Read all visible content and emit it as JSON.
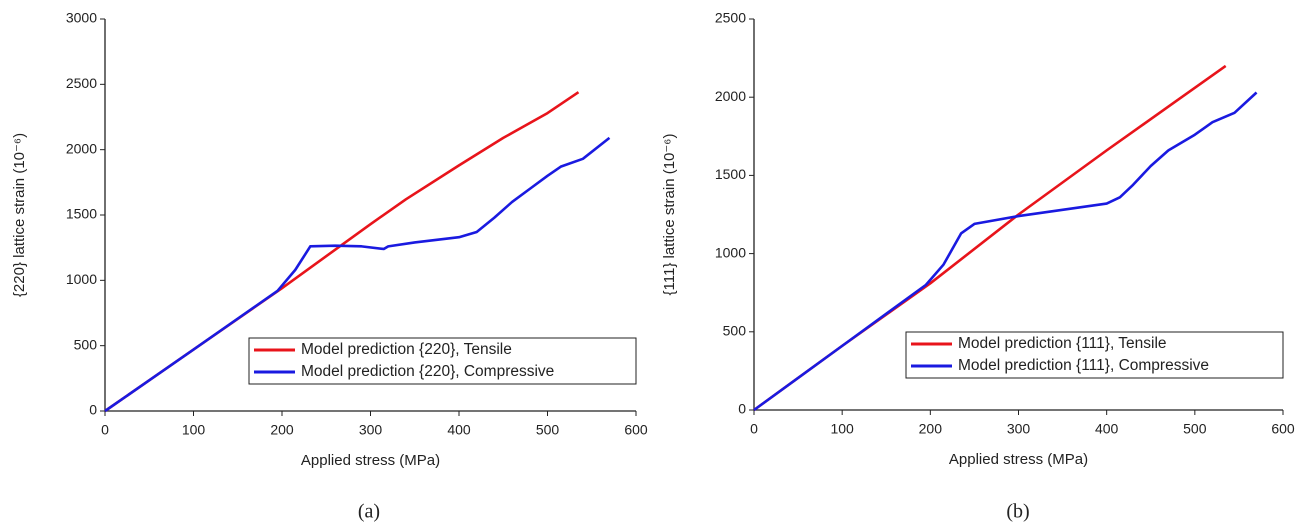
{
  "chart_data": [
    {
      "type": "line",
      "xlabel": "Applied stress (MPa)",
      "ylabel": "{220} lattice strain (10⁻⁶)",
      "caption": "(a)",
      "xlim": [
        0,
        600
      ],
      "xticks": [
        0,
        100,
        200,
        300,
        400,
        500,
        600
      ],
      "ylim": [
        0,
        3000
      ],
      "yticks": [
        0,
        500,
        1000,
        1500,
        2000,
        2500,
        3000
      ],
      "legend": "lower right",
      "series": [
        {
          "name": "Model prediction {220}, Tensile",
          "color": "#e8141b",
          "x": [
            0,
            100,
            200,
            300,
            340,
            400,
            450,
            500,
            535
          ],
          "values": [
            0,
            470,
            940,
            1430,
            1620,
            1880,
            2090,
            2280,
            2440
          ]
        },
        {
          "name": "Model prediction {220}, Compressive",
          "color": "#1a1ae0",
          "x": [
            0,
            100,
            195,
            215,
            232,
            260,
            290,
            315,
            320,
            350,
            400,
            420,
            440,
            460,
            480,
            500,
            515,
            540,
            570
          ],
          "values": [
            0,
            470,
            920,
            1080,
            1260,
            1265,
            1260,
            1240,
            1260,
            1290,
            1330,
            1370,
            1480,
            1600,
            1700,
            1800,
            1870,
            1930,
            2090
          ]
        }
      ]
    },
    {
      "type": "line",
      "xlabel": "Applied stress (MPa)",
      "ylabel": "{111} lattice strain (10⁻⁶)",
      "caption": "(b)",
      "xlim": [
        0,
        600
      ],
      "xticks": [
        0,
        100,
        200,
        300,
        400,
        500,
        600
      ],
      "ylim": [
        0,
        2500
      ],
      "yticks": [
        0,
        500,
        1000,
        1500,
        2000,
        2500
      ],
      "legend": "lower right",
      "series": [
        {
          "name": "Model prediction {111}, Tensile",
          "color": "#e8141b",
          "x": [
            0,
            100,
            200,
            300,
            400,
            480,
            535
          ],
          "values": [
            0,
            410,
            810,
            1250,
            1660,
            1980,
            2200
          ]
        },
        {
          "name": "Model prediction {111}, Compressive",
          "color": "#1a1ae0",
          "x": [
            0,
            100,
            195,
            215,
            235,
            250,
            300,
            350,
            400,
            415,
            430,
            450,
            470,
            500,
            520,
            545,
            570
          ],
          "values": [
            0,
            410,
            800,
            930,
            1130,
            1190,
            1240,
            1280,
            1320,
            1360,
            1440,
            1560,
            1660,
            1760,
            1840,
            1900,
            2030
          ]
        }
      ]
    }
  ]
}
